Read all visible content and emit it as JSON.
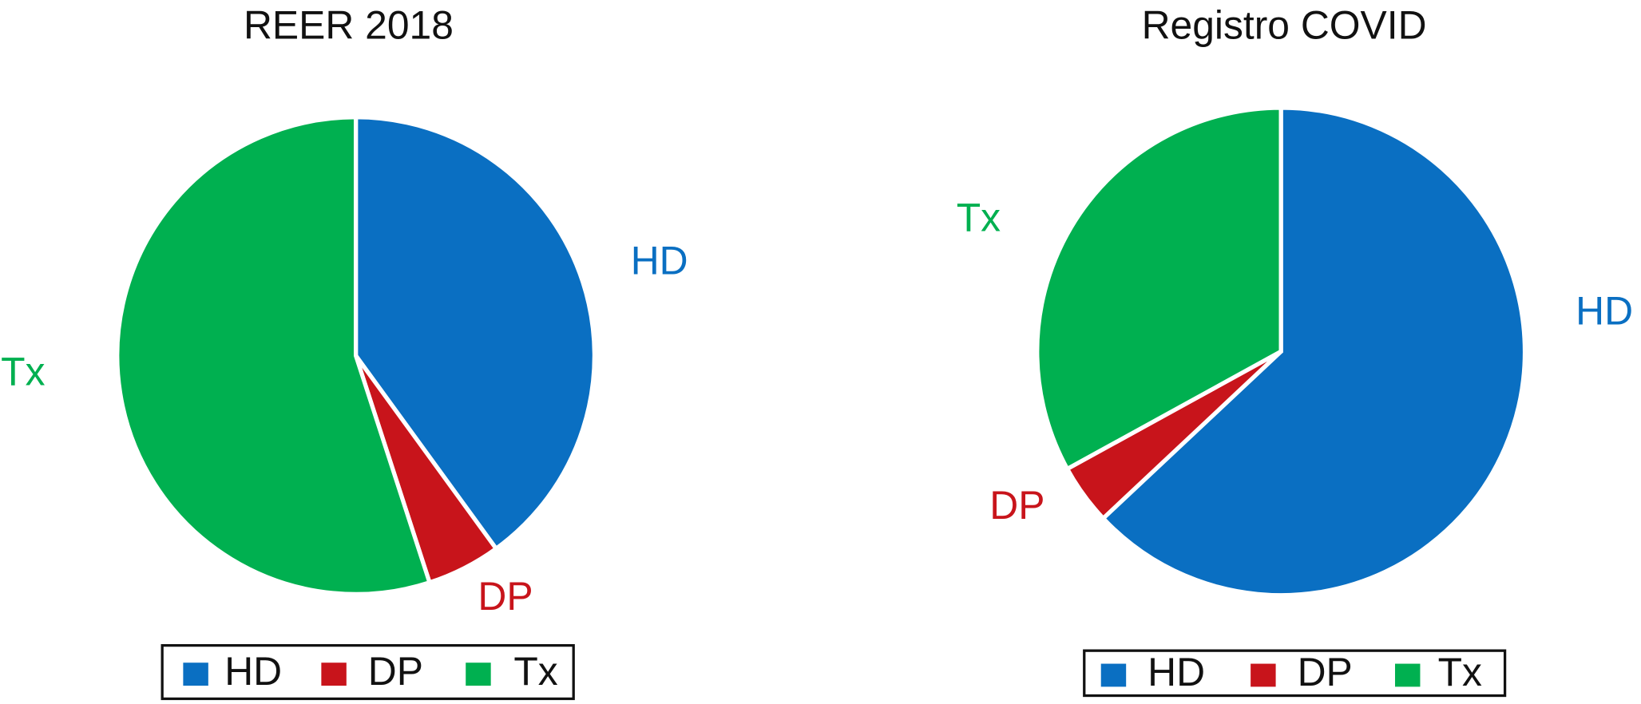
{
  "chart_data": [
    {
      "type": "pie",
      "title": "REER 2018",
      "categories": [
        "HD",
        "DP",
        "Tx"
      ],
      "values": [
        40,
        5,
        55
      ],
      "colors": [
        "#0a6fc2",
        "#c8141b",
        "#00b050"
      ]
    },
    {
      "type": "pie",
      "title": "Registro COVID",
      "categories": [
        "HD",
        "DP",
        "Tx"
      ],
      "values": [
        63,
        4,
        33
      ],
      "colors": [
        "#0a6fc2",
        "#c8141b",
        "#00b050"
      ]
    }
  ]
}
